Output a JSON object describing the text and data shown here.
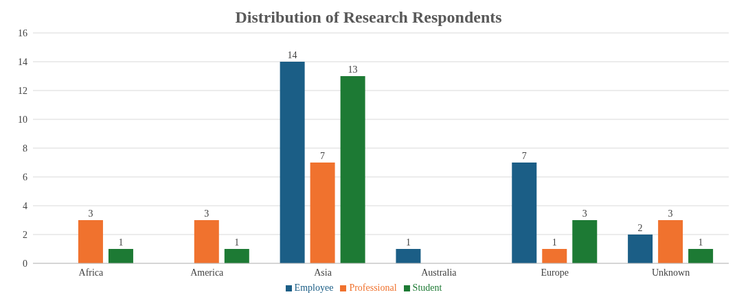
{
  "chart_data": {
    "type": "bar",
    "title": "Distribution of Research Respondents",
    "categories": [
      "Africa",
      "America",
      "Asia",
      "Australia",
      "Europe",
      "Unknown"
    ],
    "series": [
      {
        "name": "Employee",
        "color": "#1b5e86",
        "values": [
          null,
          null,
          14,
          1,
          7,
          2
        ]
      },
      {
        "name": "Professional",
        "color": "#f0722e",
        "values": [
          3,
          3,
          7,
          null,
          1,
          3
        ]
      },
      {
        "name": "Student",
        "color": "#1d7a34",
        "values": [
          1,
          1,
          13,
          null,
          3,
          1
        ]
      }
    ],
    "ylim": [
      0,
      16
    ],
    "yticks": [
      0,
      2,
      4,
      6,
      8,
      10,
      12,
      14,
      16
    ],
    "grid": "y",
    "legend": "bottom",
    "data_labels": true
  }
}
